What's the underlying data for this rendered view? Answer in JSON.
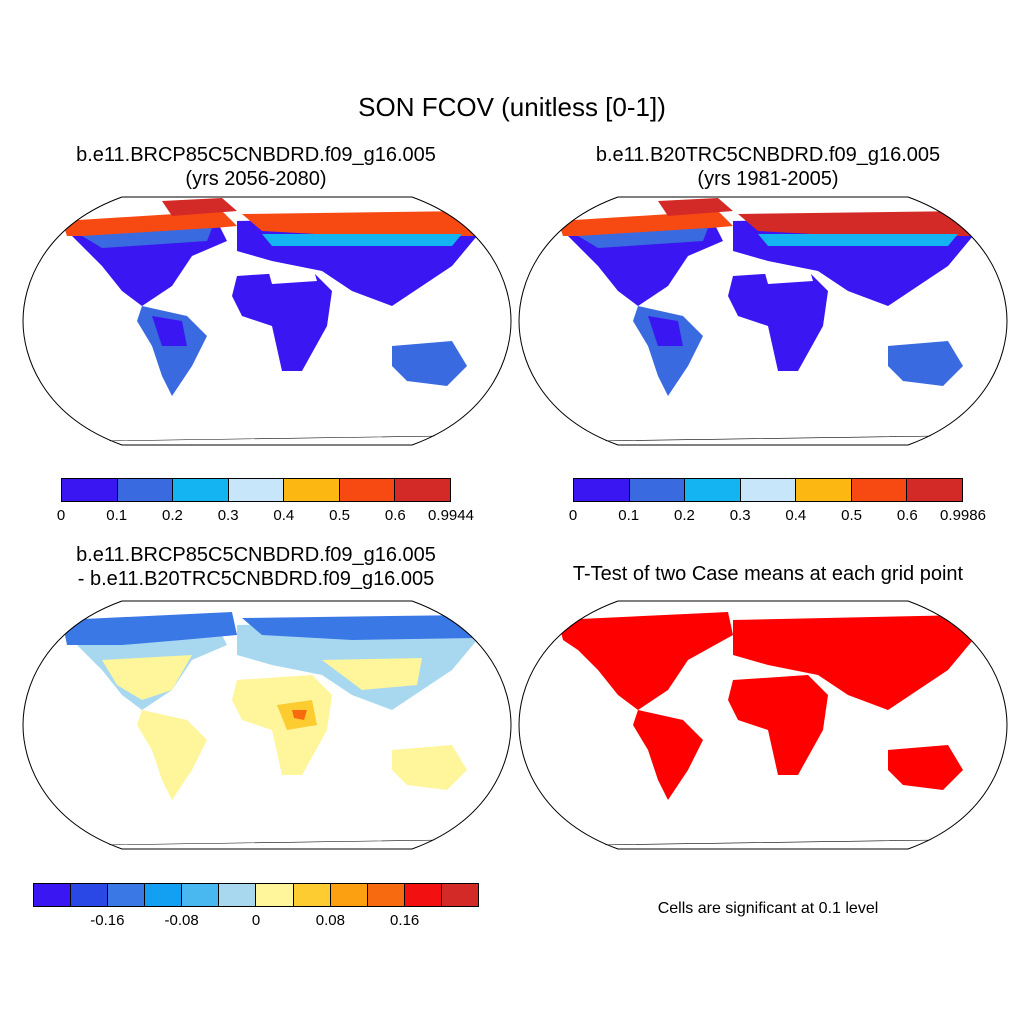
{
  "title": "SON FCOV (unitless [0-1])",
  "panels": [
    {
      "id": "p1",
      "title_line1": "b.e11.BRCP85C5CNBDRD.f09_g16.005",
      "title_line2": "(yrs 2056-2080)",
      "colorbar": {
        "colors": [
          "#3a16f2",
          "#3a6ae0",
          "#14b4f2",
          "#c8e6fa",
          "#fdb713",
          "#f74a12",
          "#d32a27"
        ],
        "ticks": [
          "0",
          "0.1",
          "0.2",
          "0.3",
          "0.4",
          "0.5",
          "0.6",
          "0.9944"
        ]
      }
    },
    {
      "id": "p2",
      "title_line1": "b.e11.B20TRC5CNBDRD.f09_g16.005",
      "title_line2": "(yrs 1981-2005)",
      "colorbar": {
        "colors": [
          "#3a16f2",
          "#3a6ae0",
          "#14b4f2",
          "#c8e6fa",
          "#fdb713",
          "#f74a12",
          "#d32a27"
        ],
        "ticks": [
          "0",
          "0.1",
          "0.2",
          "0.3",
          "0.4",
          "0.5",
          "0.6",
          "0.9986"
        ]
      }
    },
    {
      "id": "p3",
      "title_line1": "b.e11.BRCP85C5CNBDRD.f09_g16.005",
      "title_line2": "- b.e11.B20TRC5CNBDRD.f09_g16.005",
      "colorbar": {
        "colors": [
          "#3a16f2",
          "#2a48e6",
          "#3a78e6",
          "#14a0f2",
          "#4ab8f0",
          "#a8d8f0",
          "#fff59a",
          "#fdcc30",
          "#fca012",
          "#f76a10",
          "#f21010",
          "#d32a27"
        ],
        "ticks": [
          "-0.16",
          "-0.08",
          "0",
          "0.08",
          "0.16"
        ]
      }
    },
    {
      "id": "p4",
      "title_line1": "T-Test of two Case means at each grid point",
      "note": "Cells are significant at 0.1 level",
      "fill_color": "#ff0000"
    }
  ]
}
